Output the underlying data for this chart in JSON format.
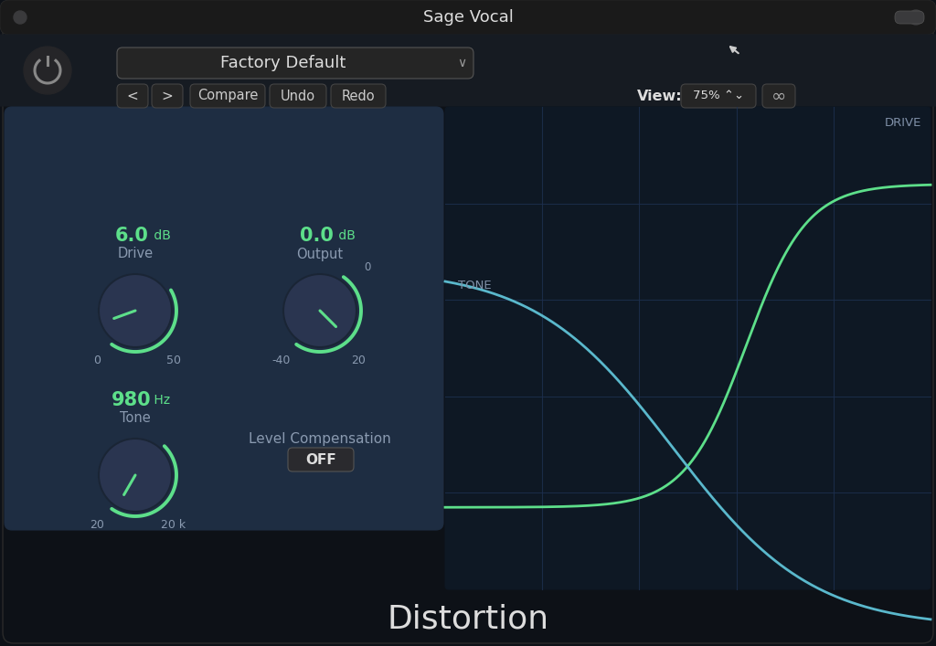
{
  "title": "Sage Vocal",
  "bottom_label": "Distortion",
  "bg_color": "#0d1117",
  "panel_color": "#1e2d42",
  "header_bg": "#161b22",
  "knob_bg": "#2a3550",
  "green_color": "#5ddf8a",
  "blue_tone_color": "#5ab8cc",
  "label_color": "#8a9ab0",
  "grid_color": "#1e3050",
  "graph_bg": "#0e1824",
  "drive_label": "Drive",
  "drive_value": "6.0",
  "drive_unit": " dB",
  "output_label": "Output",
  "output_value": "0.0",
  "output_unit": " dB",
  "tone_label": "Tone",
  "tone_value": "980",
  "tone_unit": " Hz",
  "drive_range": [
    "0",
    "50"
  ],
  "output_range": [
    "-40",
    "20"
  ],
  "tone_range": [
    "20",
    "20 k"
  ],
  "level_comp_label": "Level Compensation",
  "level_comp_value": "OFF",
  "preset_label": "Factory Default",
  "view_label": "View:",
  "view_value": "75%",
  "curve_label_drive": "DRIVE",
  "curve_label_tone": "TONE",
  "btn_bg": "#252525",
  "btn_border": "#444444",
  "dropdown_bg": "#252525",
  "title_bar_bg": "#1a1a1a"
}
